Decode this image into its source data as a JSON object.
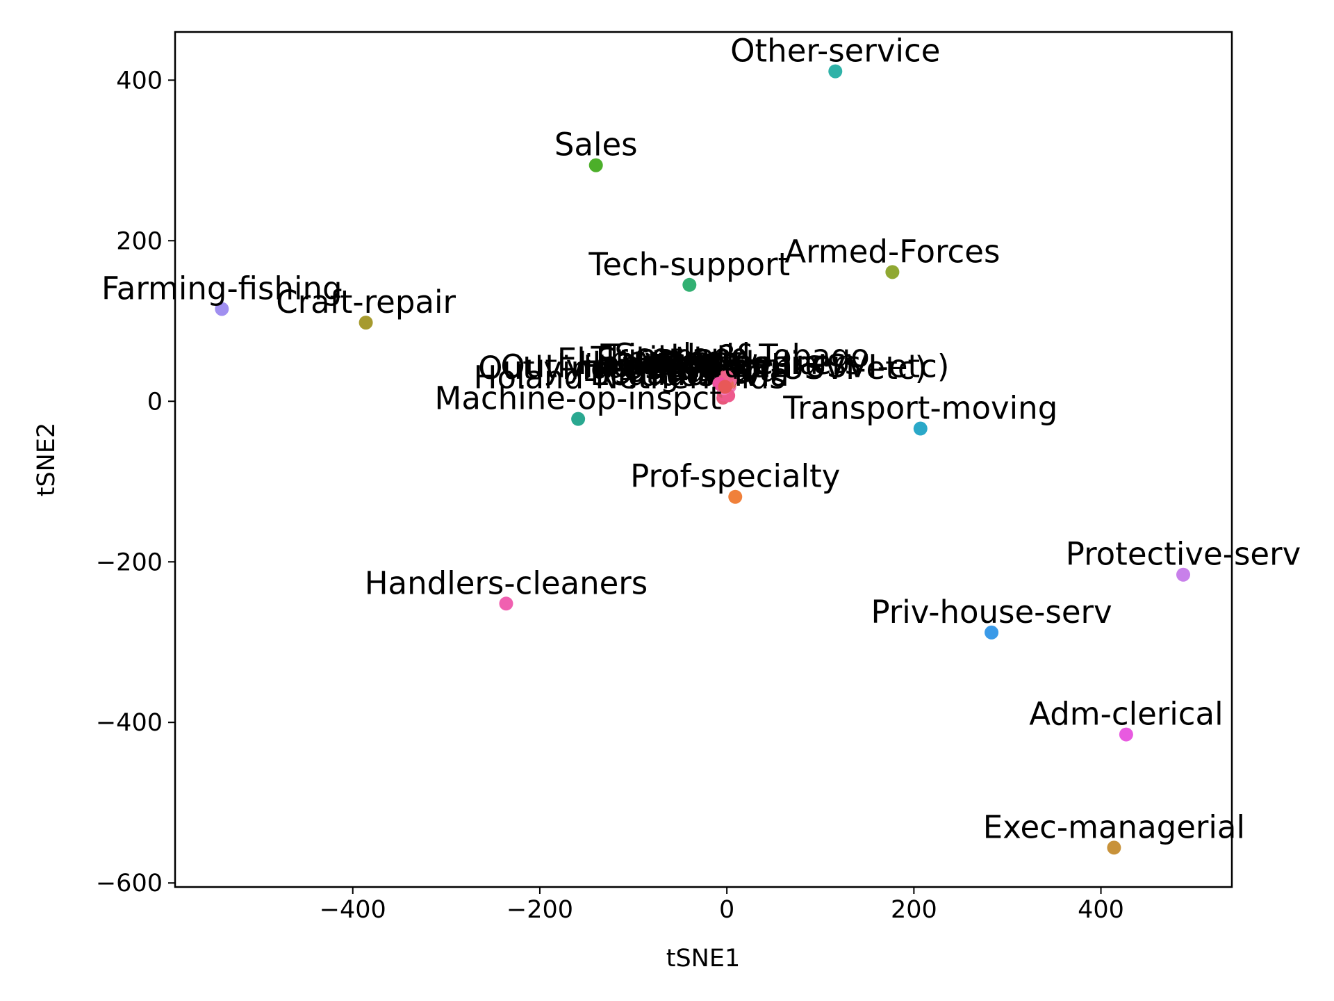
{
  "chart_data": {
    "type": "scatter",
    "title": "",
    "xlabel": "tSNE1",
    "ylabel": "tSNE2",
    "xlim": [
      -590,
      540
    ],
    "ylim": [
      -605,
      460
    ],
    "xticks": [
      -400,
      -200,
      0,
      200,
      400
    ],
    "yticks": [
      400,
      200,
      0,
      -200,
      -400,
      -600
    ],
    "xtick_labels": [
      "−400",
      "−200",
      "0",
      "200",
      "400"
    ],
    "ytick_labels": [
      "400",
      "200",
      "0",
      "−200",
      "−400",
      "−600"
    ],
    "grid": false,
    "legend": "none",
    "points": [
      {
        "label": "Other-service",
        "x": 116,
        "y": 411,
        "color": "#2fb2a8"
      },
      {
        "label": "Sales",
        "x": -140,
        "y": 294,
        "color": "#4caf2a"
      },
      {
        "label": "Armed-Forces",
        "x": 177,
        "y": 161,
        "color": "#90a832"
      },
      {
        "label": "Tech-support",
        "x": -40,
        "y": 145,
        "color": "#32b072"
      },
      {
        "label": "Farming-fishing",
        "x": -540,
        "y": 115,
        "color": "#a08ff0"
      },
      {
        "label": "Craft-repair",
        "x": -386,
        "y": 98,
        "color": "#a69a2e"
      },
      {
        "label": "?",
        "x": 0,
        "y": 30,
        "color": "#f0608a"
      },
      {
        "label": "Handlers-cleaners",
        "x": -8,
        "y": 22,
        "color": "#f050a0"
      },
      {
        "label": "Outlying-US(Guam-USVI-etc)",
        "x": -2,
        "y": 18,
        "color": "#e85858"
      },
      {
        "label": "Transport-moving",
        "x": 207,
        "y": -34,
        "color": "#2aa8c8"
      },
      {
        "label": "Machine-op-inspct",
        "x": -159,
        "y": -22,
        "color": "#2aa890"
      },
      {
        "label": "Prof-specialty",
        "x": 9,
        "y": -119,
        "color": "#f0803a"
      },
      {
        "label": "Protective-serv",
        "x": 488,
        "y": -216,
        "color": "#c880ea"
      },
      {
        "label": "Handlers-cleaners",
        "x": -236,
        "y": -252,
        "color": "#f060b0"
      },
      {
        "label": "Priv-house-serv",
        "x": 283,
        "y": -288,
        "color": "#3a9ae8"
      },
      {
        "label": "Adm-clerical",
        "x": 427,
        "y": -415,
        "color": "#e85ae0"
      },
      {
        "label": "Exec-managerial",
        "x": 414,
        "y": -556,
        "color": "#c8923a"
      }
    ],
    "cluster_labels": [
      "Holand-Netherlands",
      "Thailand",
      "Vietnam",
      "Portugal",
      "Peru",
      "Ecuador",
      "Scotland",
      "Laos",
      "Cambodia",
      "Hungary",
      "Honduras",
      "Yugoslavia",
      "Trinadad&Tobago",
      "El-Salvador",
      "Hong",
      "Outlying-US(Guam-USVI-etc)"
    ],
    "cluster_colors": [
      "#e8587a",
      "#f06a9a",
      "#e66a5a",
      "#f07abc",
      "#d85a70",
      "#ee5a8c"
    ]
  }
}
